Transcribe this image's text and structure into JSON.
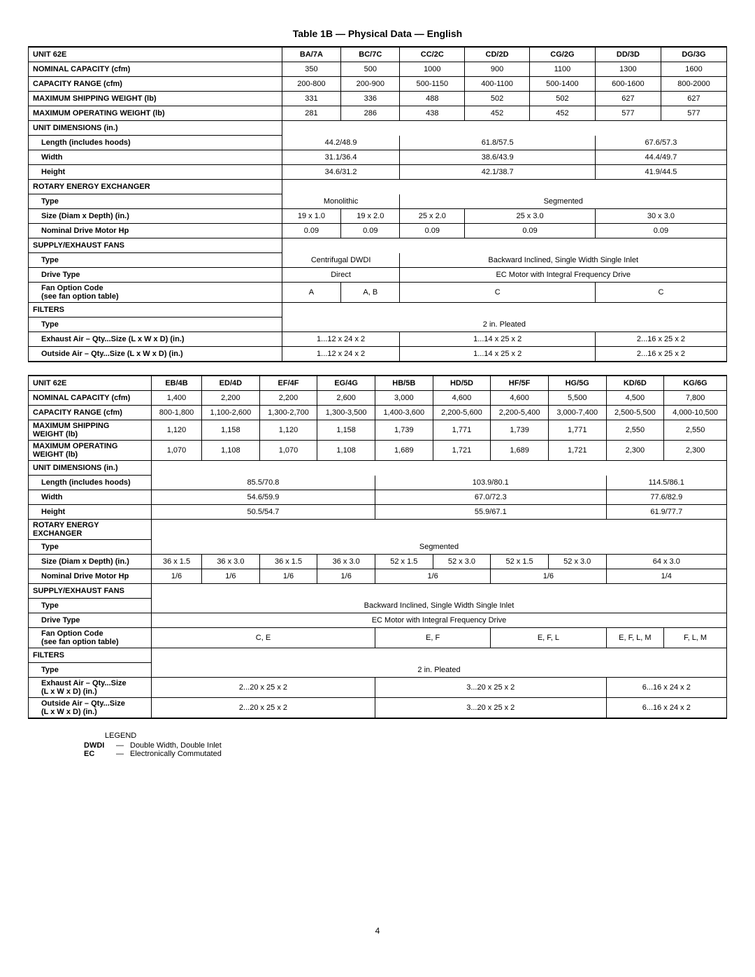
{
  "title": "Table 1B — Physical Data — English",
  "page_number": "4",
  "legend": {
    "heading": "LEGEND",
    "items": [
      {
        "term": "DWDI",
        "dash": "—",
        "def": "Double Width, Double Inlet"
      },
      {
        "term": "EC",
        "dash": "—",
        "def": "Electronically Commutated"
      }
    ]
  },
  "t1": {
    "headers": [
      "UNIT 62E",
      "BA/7A",
      "BC/7C",
      "CC/2C",
      "CD/2D",
      "CG/2G",
      "DD/3D",
      "DG/3G"
    ],
    "rows": {
      "nominal_cap_label": "NOMINAL CAPACITY (cfm)",
      "nominal_cap": [
        "350",
        "500",
        "1000",
        "900",
        "1100",
        "1300",
        "1600"
      ],
      "cap_range_label": "CAPACITY RANGE (cfm)",
      "cap_range": [
        "200-800",
        "200-900",
        "500-1150",
        "400-1100",
        "500-1400",
        "600-1600",
        "800-2000"
      ],
      "ship_wt_label": "MAXIMUM SHIPPING WEIGHT (lb)",
      "ship_wt": [
        "331",
        "336",
        "488",
        "502",
        "502",
        "627",
        "627"
      ],
      "op_wt_label": "MAXIMUM OPERATING WEIGHT (lb)",
      "op_wt": [
        "281",
        "286",
        "438",
        "452",
        "452",
        "577",
        "577"
      ],
      "dims_label": "UNIT DIMENSIONS (in.)",
      "length_label": "Length (includes hoods)",
      "length": [
        "44.2/48.9",
        "61.8/57.5",
        "67.6/57.3"
      ],
      "width_label": "Width",
      "width": [
        "31.1/36.4",
        "38.6/43.9",
        "44.4/49.7"
      ],
      "height_label": "Height",
      "height": [
        "34.6/31.2",
        "42.1/38.7",
        "41.9/44.5"
      ],
      "rex_label": "ROTARY ENERGY EXCHANGER",
      "type_label": "Type",
      "rex_type": [
        "Monolithic",
        "Segmented"
      ],
      "size_label": "Size (Diam x Depth) (in.)",
      "rex_size": [
        "19 x 1.0",
        "19 x 2.0",
        "25 x 2.0",
        "25 x 3.0",
        "30 x 3.0"
      ],
      "motor_label": "Nominal Drive Motor Hp",
      "rex_motor": [
        "0.09",
        "0.09",
        "0.09",
        "0.09",
        "0.09"
      ],
      "fans_label": "SUPPLY/EXHAUST FANS",
      "fan_type": [
        "Centrifugal DWDI",
        "Backward Inclined, Single Width Single Inlet"
      ],
      "drive_label": "Drive Type",
      "fan_drive": [
        "Direct",
        "EC Motor with Integral Frequency Drive"
      ],
      "fan_code_label1": "Fan Option Code",
      "fan_code_label2": "(see fan option table)",
      "fan_code": [
        "A",
        "A, B",
        "C",
        "C"
      ],
      "filters_label": "FILTERS",
      "filter_type": "2 in. Pleated",
      "exh_label": "Exhaust Air – Qty...Size  (L x W x D) (in.)",
      "exh": [
        "1...12 x 24 x 2",
        "1...14 x 25 x 2",
        "2...16 x 25 x 2"
      ],
      "oa_label": "Outside Air – Qty...Size (L x W x D) (in.)",
      "oa": [
        "1...12 x 24 x 2",
        "1...14 x 25 x 2",
        "2...16 x 25 x 2"
      ]
    }
  },
  "t2": {
    "headers": [
      "UNIT 62E",
      "EB/4B",
      "ED/4D",
      "EF/4F",
      "EG/4G",
      "HB/5B",
      "HD/5D",
      "HF/5F",
      "HG/5G",
      "KD/6D",
      "KG/6G"
    ],
    "rows": {
      "nominal_cap_label": "NOMINAL CAPACITY (cfm)",
      "nominal_cap": [
        "1,400",
        "2,200",
        "2,200",
        "2,600",
        "3,000",
        "4,600",
        "4,600",
        "5,500",
        "4,500",
        "7,800"
      ],
      "cap_range_label": "CAPACITY RANGE (cfm)",
      "cap_range": [
        "800-1,800",
        "1,100-2,600",
        "1,300-2,700",
        "1,300-3,500",
        "1,400-3,600",
        "2,200-5,600",
        "2,200-5,400",
        "3,000-7,400",
        "2,500-5,500",
        "4,000-10,500"
      ],
      "ship_wt_label1": "MAXIMUM SHIPPING",
      "ship_wt_label2": "WEIGHT (lb)",
      "ship_wt": [
        "1,120",
        "1,158",
        "1,120",
        "1,158",
        "1,739",
        "1,771",
        "1,739",
        "1,771",
        "2,550",
        "2,550"
      ],
      "op_wt_label1": "MAXIMUM OPERATING",
      "op_wt_label2": "WEIGHT (lb)",
      "op_wt": [
        "1,070",
        "1,108",
        "1,070",
        "1,108",
        "1,689",
        "1,721",
        "1,689",
        "1,721",
        "2,300",
        "2,300"
      ],
      "dims_label": "UNIT DIMENSIONS (in.)",
      "length_label": "Length (includes hoods)",
      "length": [
        "85.5/70.8",
        "103.9/80.1",
        "114.5/86.1"
      ],
      "width_label": "Width",
      "width": [
        "54.6/59.9",
        "67.0/72.3",
        "77.6/82.9"
      ],
      "height_label": "Height",
      "height": [
        "50.5/54.7",
        "55.9/67.1",
        "61.9/77.7"
      ],
      "rex_label1": "ROTARY ENERGY",
      "rex_label2": "EXCHANGER",
      "type_label": "Type",
      "rex_type": "Segmented",
      "size_label": "Size (Diam x Depth) (in.)",
      "rex_size": [
        "36 x 1.5",
        "36 x 3.0",
        "36 x 1.5",
        "36 x 3.0",
        "52 x 1.5",
        "52 x 3.0",
        "52 x 1.5",
        "52 x 3.0",
        "64 x 3.0"
      ],
      "motor_label": "Nominal Drive Motor Hp",
      "rex_motor": [
        "1/6",
        "1/6",
        "1/6",
        "1/6",
        "1/6",
        "1/6",
        "1/4"
      ],
      "fans_label": "SUPPLY/EXHAUST FANS",
      "fan_type": "Backward Inclined, Single Width Single Inlet",
      "drive_label": "Drive Type",
      "fan_drive": "EC Motor with Integral Frequency Drive",
      "fan_code_label1": "Fan Option Code",
      "fan_code_label2": "(see fan option table)",
      "fan_code": [
        "C, E",
        "E, F",
        "E, F, L",
        "E, F, L, M",
        "F, L, M"
      ],
      "filters_label": "FILTERS",
      "filter_type": "2 in. Pleated",
      "exh_label1": "Exhaust Air – Qty...Size",
      "exh_label2": "(L x W x D) (in.)",
      "exh": [
        "2...20 x 25 x 2",
        "3...20 x 25 x 2",
        "6...16 x 24 x 2"
      ],
      "oa_label1": "Outside Air – Qty...Size",
      "oa_label2": "(L x W x D) (in.)",
      "oa": [
        "2...20 x 25 x 2",
        "3...20 x 25 x 2",
        "6...16 x 24 x 2"
      ]
    }
  }
}
